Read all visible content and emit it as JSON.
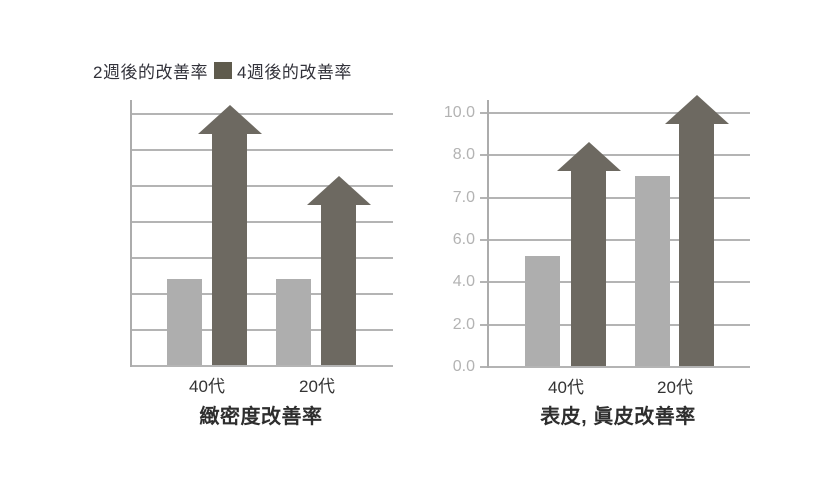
{
  "page": {
    "background": "#ffffff"
  },
  "legend": {
    "items": [
      {
        "label": "2週後的改善率",
        "series_key": "light"
      },
      {
        "label": "4週後的改善率",
        "series_key": "dark",
        "swatch_color": "#5f5b4d"
      }
    ]
  },
  "colors": {
    "light_series": "#aeaeae",
    "dark_series": "#6d6961",
    "legend_swatch": "#5f5b4d",
    "gridline": "#b4b4b4",
    "axis_line": "#acacac",
    "tick_label": "#b3b3b3",
    "text": "#333333",
    "title_text": "#2e2e2e"
  },
  "chart_data": [
    {
      "type": "bar",
      "title": "緻密度改善率",
      "categories": [
        "40代",
        "20代"
      ],
      "series": [
        {
          "name": "2週後的改善率",
          "style": "bar",
          "color_key": "light_series",
          "values": [
            3.4,
            3.4
          ]
        },
        {
          "name": "4週後的改善率",
          "style": "arrow",
          "color_key": "dark_series",
          "values": [
            10.3,
            7.5
          ]
        }
      ],
      "y_axis": {
        "tick_values": [
          0,
          10
        ],
        "tick_labels": [],
        "labels_visible": false
      },
      "ylim": [
        0,
        10
      ],
      "grid": "horizontal",
      "legend_position": "top-left"
    },
    {
      "type": "bar",
      "title": "表皮, 眞皮改善率",
      "categories": [
        "40代",
        "20代"
      ],
      "series": [
        {
          "name": "2週後的改善率",
          "style": "bar",
          "color_key": "light_series",
          "values": [
            5.2,
            7.5
          ]
        },
        {
          "name": "4週後的改善率",
          "style": "arrow",
          "color_key": "dark_series",
          "values": [
            8.6,
            10.8
          ]
        }
      ],
      "y_axis": {
        "tick_values": [
          0,
          2,
          4,
          6,
          7,
          8,
          10
        ],
        "tick_labels": [
          "0.0",
          "2.0",
          "4.0",
          "6.0",
          "7.0",
          "8.0",
          "10.0"
        ],
        "labels_visible": true
      },
      "ylim": [
        0,
        10.8
      ],
      "grid": "horizontal",
      "legend_position": "top-left"
    }
  ]
}
